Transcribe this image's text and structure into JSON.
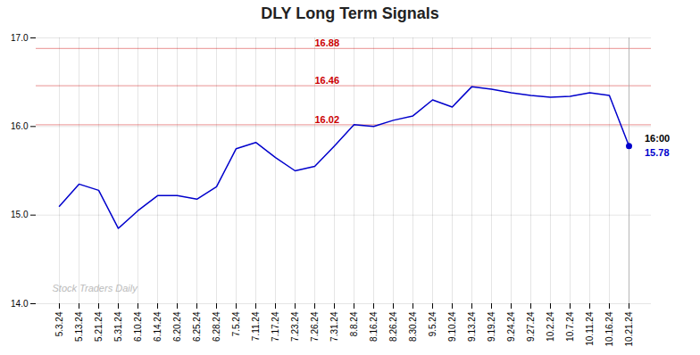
{
  "chart_data": {
    "type": "line",
    "title": "DLY Long Term Signals",
    "categories": [
      "5.3.24",
      "5.13.24",
      "5.21.24",
      "5.31.24",
      "6.10.24",
      "6.14.24",
      "6.20.24",
      "6.25.24",
      "6.28.24",
      "7.5.24",
      "7.11.24",
      "7.17.24",
      "7.23.24",
      "7.26.24",
      "7.31.24",
      "8.8.24",
      "8.16.24",
      "8.26.24",
      "8.30.24",
      "9.5.24",
      "9.10.24",
      "9.13.24",
      "9.19.24",
      "9.24.24",
      "9.27.24",
      "10.2.24",
      "10.7.24",
      "10.11.24",
      "10.16.24",
      "10.21.24"
    ],
    "values": [
      15.1,
      15.35,
      15.28,
      14.85,
      15.05,
      15.22,
      15.22,
      15.18,
      15.32,
      15.75,
      15.82,
      15.65,
      15.5,
      15.55,
      15.78,
      16.02,
      16.0,
      16.07,
      16.12,
      16.3,
      16.22,
      16.45,
      16.42,
      16.38,
      16.35,
      16.33,
      16.34,
      16.38,
      16.35,
      15.78
    ],
    "color": "#0000cc",
    "ylim": [
      14,
      17
    ],
    "yticks": [
      14,
      15,
      16,
      17
    ],
    "grid": true,
    "hlines": {
      "values": [
        16.88,
        16.46,
        16.02
      ],
      "color": "#cc0000"
    },
    "annotations": [
      {
        "text": "16:00",
        "color": "#000000"
      },
      {
        "text": "15.78",
        "color": "#0000cc"
      }
    ],
    "watermark": "Stock Traders Daily"
  }
}
